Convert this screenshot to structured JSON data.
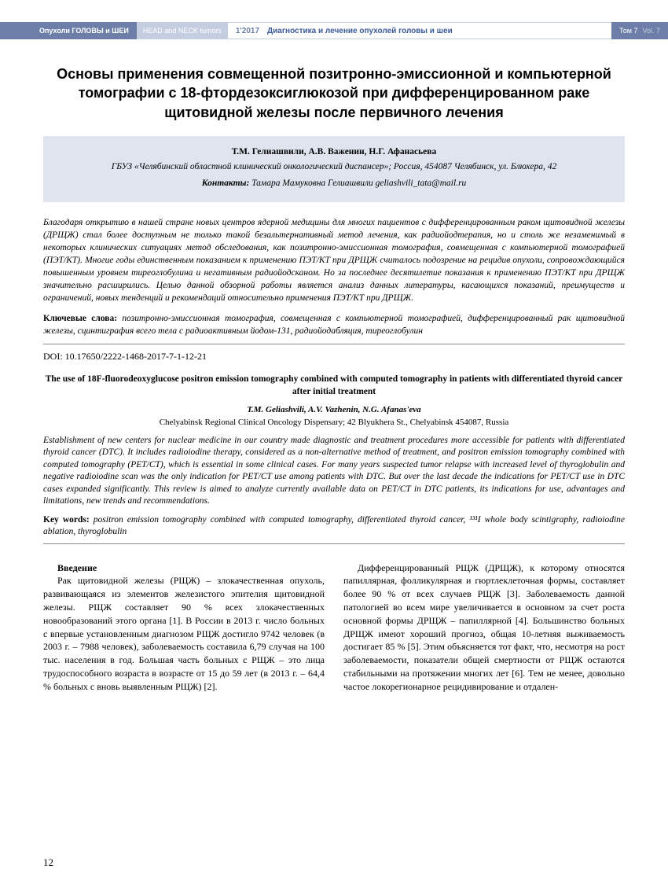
{
  "header": {
    "journal_ru": "Опухоли ГОЛОВЫ и ШЕИ",
    "journal_en": "HEAD and NECK tumors",
    "issue": "1'2017",
    "section": "Диагностика и лечение опухолей головы и шеи",
    "volume_ru": "Том 7",
    "volume_en": "Vol. 7"
  },
  "title_ru": "Основы применения совмещенной позитронно-эмиссионной и компьютерной томографии с 18-фтордезоксиглюкозой при дифференцированном раке щитовидной железы после первичного лечения",
  "authors_ru": "Т.М. Гелиашвили, А.В. Важенин, Н.Г. Афанасьева",
  "affiliation_ru": "ГБУЗ «Челябинский областной клинический онкологический диспансер»; Россия, 454087 Челябинск, ул. Блюхера, 42",
  "contact_label": "Контакты:",
  "contact_text": "Тамара Мамуковна Гелиашвили geliashvili_tata@mail.ru",
  "abstract_ru": "Благодаря открытию в нашей стране новых центров ядерной медицины для многих пациентов с дифференцированным раком щитовидной железы (ДРЩЖ) стал более доступным не только такой безальтернативный метод лечения, как радиойодтерапия, но и столь же незаменимый в некоторых клинических ситуациях метод обследования, как позитронно-эмиссионная томография, совмещенная с компьютерной томографией (ПЭТ/КТ). Многие годы единственным показанием к применению ПЭТ/КТ при ДРЩЖ считалось подозрение на рецидив опухоли, сопровождающийся повышенным уровнем тиреоглобулина и негативным радиойодсканом. Но за последнее десятилетие показания к применению ПЭТ/КТ при ДРЩЖ значительно расширились. Целью данной обзорной работы является анализ данных литературы, касающихся показаний, преимуществ и ограничений, новых тенденций и рекомендаций относительно применения ПЭТ/КТ при ДРЩЖ.",
  "keywords_ru_label": "Ключевые слова:",
  "keywords_ru": "позитронно-эмиссионная томография, совмещенная с компьютерной томографией, дифференцированный рак щитовидной железы, сцинтиграфия всего тела с радиоактивным йодом-131, радиойодабляция, тиреоглобулин",
  "doi": "DOI: 10.17650/2222-1468-2017-7-1-12-21",
  "title_en": "The use of 18F-fluorodeoxyglucose positron emission tomography combined with computed tomography in patients with differentiated thyroid cancer after initial treatment",
  "authors_en": "T.M. Geliashvili, A.V. Vazhenin, N.G. Afanas'eva",
  "affiliation_en": "Chelyabinsk Regional Clinical Oncology Dispensary; 42 Blyukhera St., Chelyabinsk 454087, Russia",
  "abstract_en": "Establishment of new centers for nuclear medicine in our country made diagnostic and treatment procedures more accessible for patients with differentiated thyroid cancer (DTC). It includes radioiodine therapy, considered as a non-alternative method of treatment, and positron emission tomography combined with computed tomography (PET/CT), which is essential in some clinical cases. For many years suspected tumor relapse with increased level of thyroglobulin and negative radioiodine scan was the only indication for PET/CT use among patients with DTC. But over the last decade the indications for PET/CT use in DTC cases expanded significantly. This review is aimed to analyze currently available data on PET/CT in DTC patients, its indications for use, advantages and limitations, new trends and recommendations.",
  "keywords_en_label": "Key words:",
  "keywords_en": "positron emission tomography combined with computed tomography, differentiated thyroid cancer, ¹³¹I whole body scintigraphy, radioiodine ablation, thyroglobulin",
  "section_heading": "Введение",
  "body_col1": "Рак щитовидной железы (РЩЖ) – злокачественная опухоль, развивающаяся из элементов железистого эпителия щитовидной железы. РЩЖ составляет 90 % всех злокачественных новообразований этого органа [1]. В России в 2013 г. число больных с впервые установленным диагнозом РЩЖ достигло 9742 человек (в 2003 г. – 7988 человек), заболеваемость составила 6,79 случая на 100 тыс. населения в год. Большая часть больных с РЩЖ – это лица трудоспособного возраста в возрасте от 15 до 59 лет (в 2013 г. – 64,4 % больных с вновь выявленным РЩЖ) [2].",
  "body_col2": "Дифференцированный РЩЖ (ДРЩЖ), к которому относятся папиллярная, фолликулярная и гюртлеклеточная формы, составляет более 90 % от всех случаев РЩЖ [3]. Заболеваемость данной патологией во всем мире увеличивается в основном за счет роста основной формы ДРЩЖ – папиллярной [4]. Большинство больных ДРЩЖ имеют хороший прогноз, общая 10-летняя выживаемость достигает 85 % [5]. Этим объясняется тот факт, что, несмотря на рост заболеваемости, показатели общей смертности от РЩЖ остаются стабильными на протяжении многих лет [6]. Тем не менее, довольно частое локорегионарное рецидивирование и отдален-",
  "page_number": "12",
  "colors": {
    "header_blue": "#6d7fa8",
    "header_light": "#c5cee0",
    "section_text": "#3a5a9a",
    "box_bg": "#dfe4ef",
    "page_bg": "#ffffff"
  }
}
